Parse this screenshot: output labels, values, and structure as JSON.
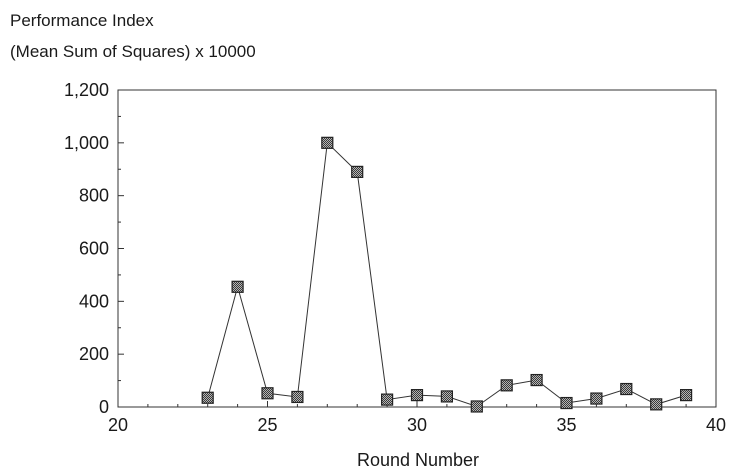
{
  "chart_data": {
    "type": "line",
    "ylabel_lines": [
      "Performance Index",
      "(Mean Sum of Squares) x 10000"
    ],
    "xlabel": "Round Number",
    "xlim": [
      20,
      40
    ],
    "ylim": [
      0,
      1200
    ],
    "x_ticks": [
      20,
      25,
      30,
      35,
      40
    ],
    "x_tick_labels": [
      "20",
      "25",
      "30",
      "35",
      "40"
    ],
    "y_ticks": [
      0,
      200,
      400,
      600,
      800,
      1000,
      1200
    ],
    "y_tick_labels": [
      "0",
      "200",
      "400",
      "600",
      "800",
      "1,000",
      "1,200"
    ],
    "grid": false,
    "series": [
      {
        "x": [
          23,
          24,
          25,
          26,
          27,
          28,
          29,
          30,
          31,
          32,
          33,
          34,
          35,
          36,
          37,
          38,
          39
        ],
        "y": [
          35,
          455,
          52,
          38,
          1000,
          890,
          28,
          45,
          40,
          2,
          82,
          102,
          15,
          32,
          68,
          10,
          45
        ],
        "marker": "square",
        "color": "#333333"
      }
    ]
  }
}
